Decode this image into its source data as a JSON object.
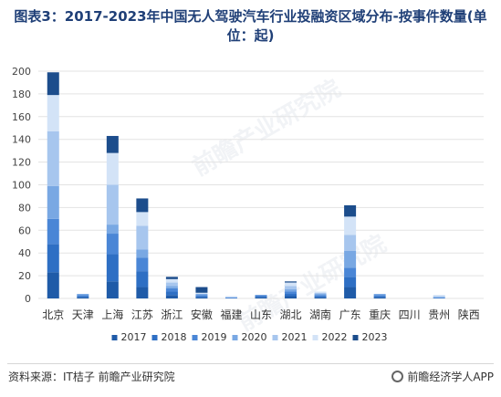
{
  "title": "图表3：2017-2023年中国无人驾驶汽车行业投融资区域分布-按事件数量(单位：起)",
  "source": "资料来源：IT桔子 前瞻产业研究院",
  "brand": "前瞻经济学人APP",
  "watermark_text": "前瞻产业研究院",
  "colors": {
    "2017": "#1f5ba8",
    "2018": "#2e6fc4",
    "2019": "#4a86d6",
    "2020": "#79a8e3",
    "2021": "#a7c6ee",
    "2022": "#d3e3f7",
    "2023": "#1c4d8c"
  },
  "chart_data": {
    "type": "bar",
    "stacked": true,
    "categories": [
      "北京",
      "天津",
      "上海",
      "江苏",
      "浙江",
      "安徽",
      "福建",
      "山东",
      "湖北",
      "湖南",
      "广东",
      "重庆",
      "四川",
      "贵州",
      "陕西"
    ],
    "series": [
      {
        "name": "2017",
        "values": [
          23,
          1,
          15,
          10,
          3,
          1,
          0,
          1,
          2,
          1,
          10,
          1,
          0,
          0,
          0
        ]
      },
      {
        "name": "2018",
        "values": [
          25,
          1,
          24,
          14,
          3,
          1,
          0,
          1,
          2,
          1,
          9,
          1,
          0,
          0,
          0
        ]
      },
      {
        "name": "2019",
        "values": [
          22,
          1,
          18,
          12,
          3,
          1,
          1,
          1,
          2,
          1,
          8,
          1,
          0,
          1,
          0
        ]
      },
      {
        "name": "2020",
        "values": [
          29,
          1,
          8,
          7,
          2,
          1,
          0,
          0,
          2,
          1,
          15,
          1,
          0,
          0,
          0
        ]
      },
      {
        "name": "2021",
        "values": [
          48,
          0,
          35,
          21,
          3,
          0,
          0,
          0,
          3,
          1,
          14,
          0,
          0,
          1,
          0
        ]
      },
      {
        "name": "2022",
        "values": [
          32,
          0,
          28,
          12,
          3,
          1,
          1,
          0,
          3,
          1,
          16,
          0,
          0,
          1,
          0
        ]
      },
      {
        "name": "2023",
        "values": [
          20,
          0,
          15,
          12,
          2,
          5,
          0,
          0,
          1,
          0,
          10,
          0,
          0,
          0,
          0
        ]
      }
    ],
    "ylim": [
      0,
      200
    ],
    "yticks": [
      0,
      20,
      40,
      60,
      80,
      100,
      120,
      140,
      160,
      180,
      200
    ],
    "grid": true,
    "legend": "bottom"
  }
}
